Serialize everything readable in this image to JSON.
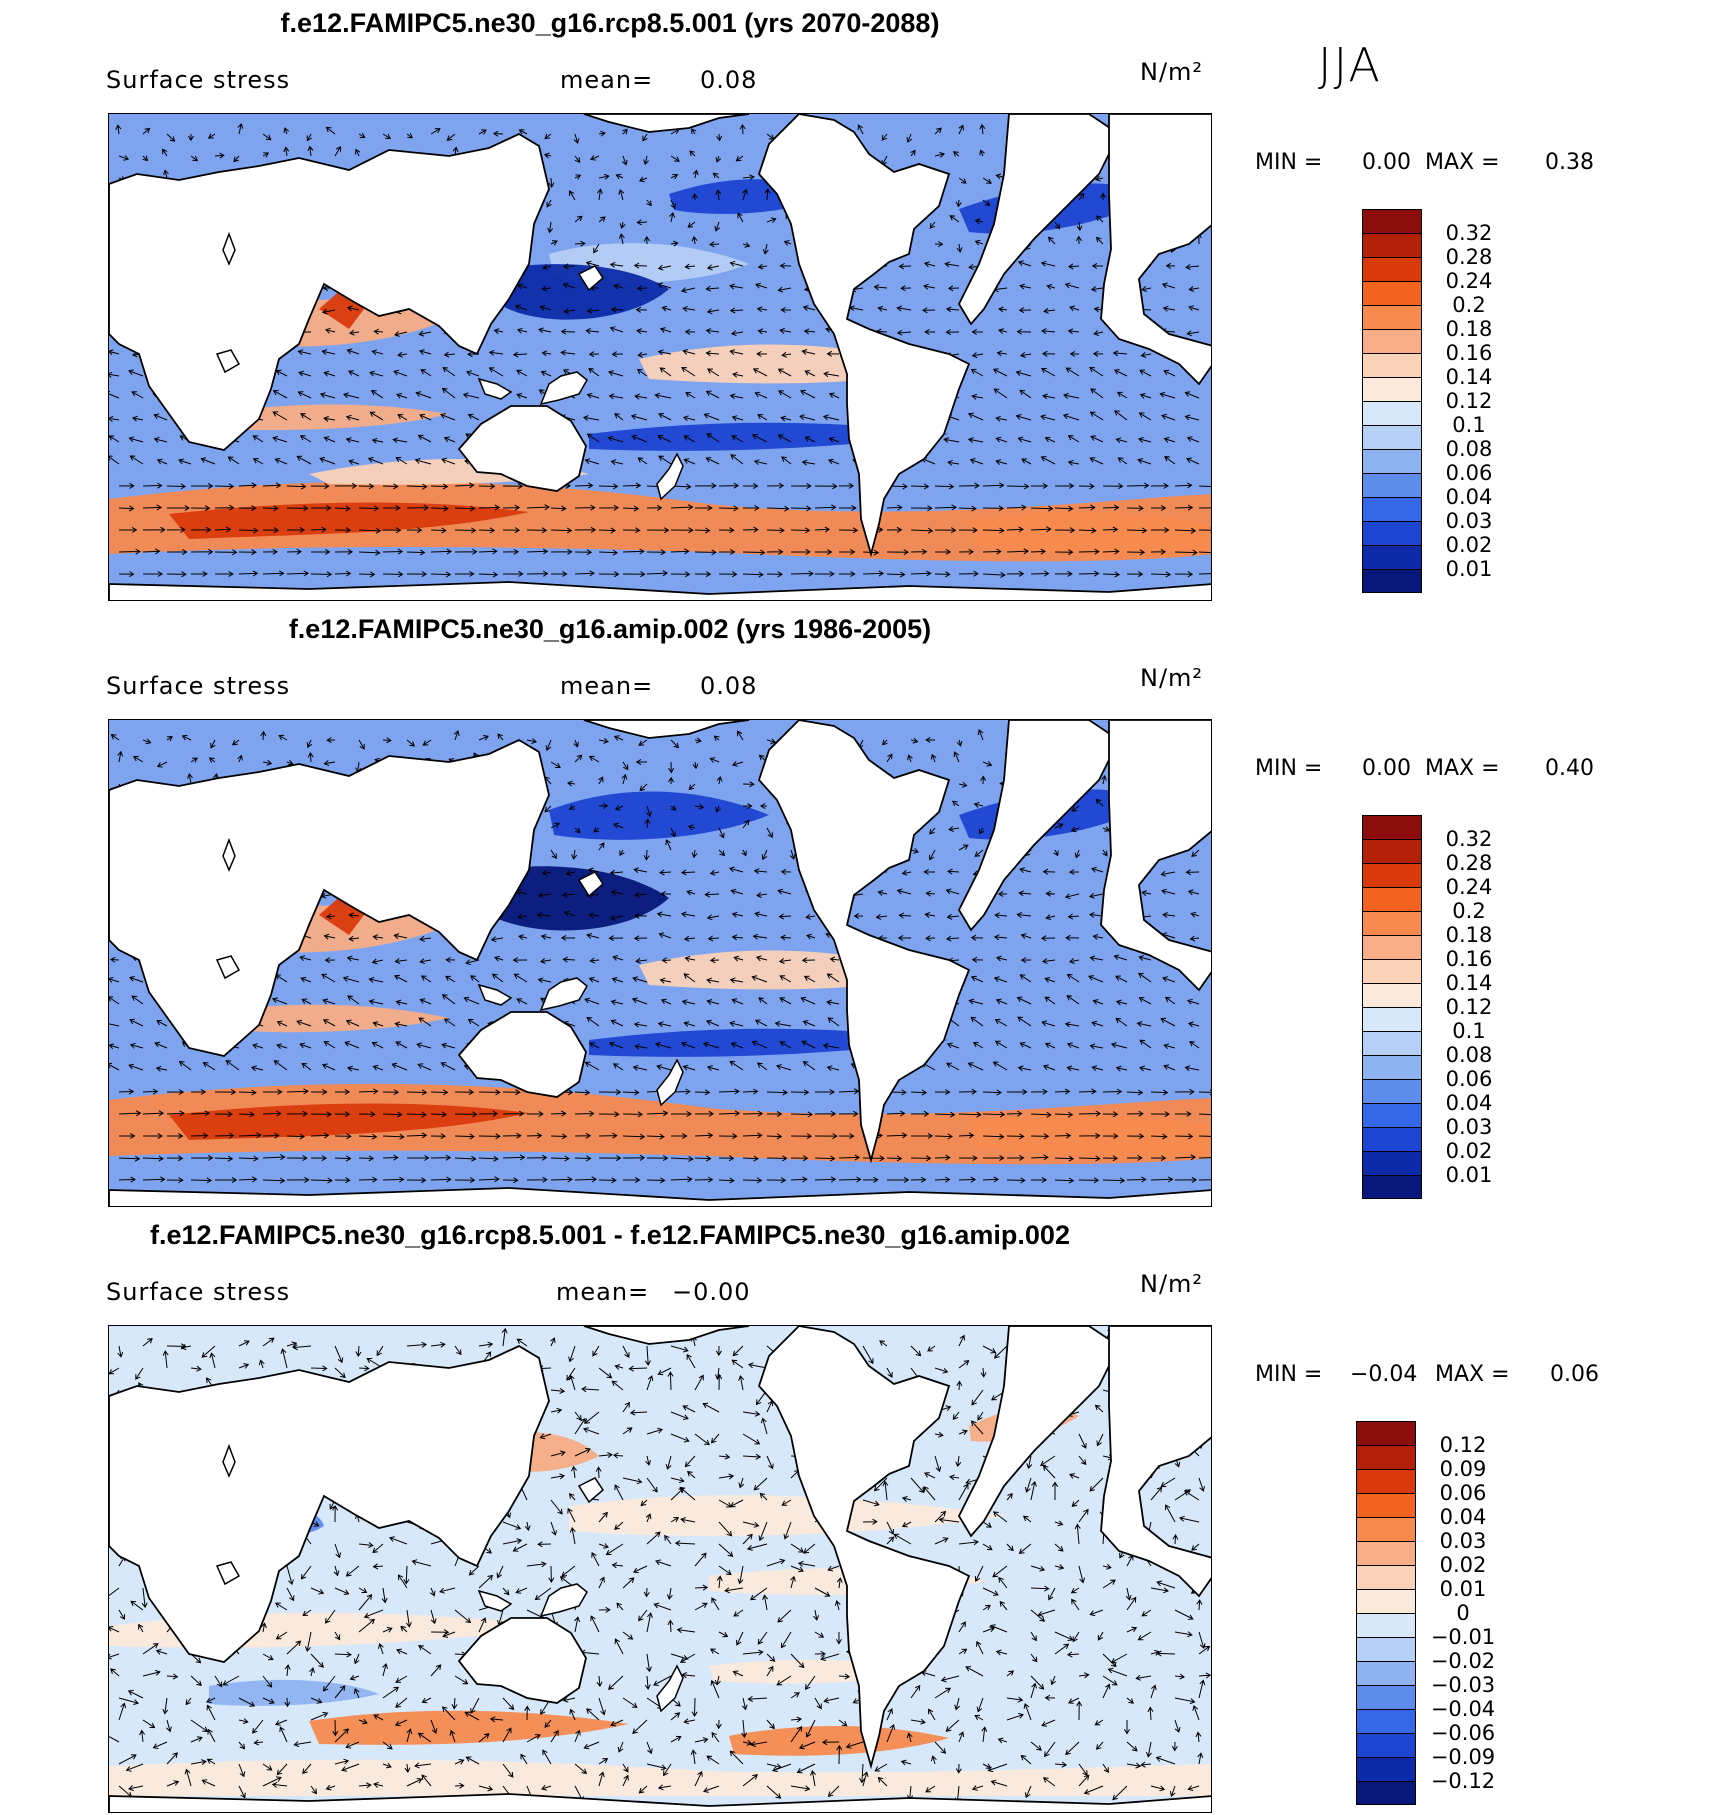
{
  "season": "JJA",
  "panels": [
    {
      "title": "f.e12.FAMIPC5.ne30_g16.rcp8.5.001 (yrs 2070-2088)",
      "variable": "Surface stress",
      "mean_label": "mean=",
      "mean_value": "0.08",
      "units": "N/m²",
      "min_label": "MIN =",
      "min_value": "0.00",
      "max_label": "MAX =",
      "max_value": "0.38",
      "colorbar": {
        "labels": [
          "0.32",
          "0.28",
          "0.24",
          "0.2",
          "0.18",
          "0.16",
          "0.14",
          "0.12",
          "0.1",
          "0.08",
          "0.06",
          "0.04",
          "0.03",
          "0.02",
          "0.01"
        ],
        "colors": [
          "#8b0d0d",
          "#b3200a",
          "#d93a0c",
          "#f2631f",
          "#f78a4f",
          "#f7ad85",
          "#fad2b8",
          "#fbeadb",
          "#d6e8fa",
          "#b5cff5",
          "#8fb2f0",
          "#5e8ced",
          "#3568e6",
          "#1c45d1",
          "#0d2ba8",
          "#07177a"
        ]
      },
      "map_style": "rcp"
    },
    {
      "title": "f.e12.FAMIPC5.ne30_g16.amip.002 (yrs 1986-2005)",
      "variable": "Surface stress",
      "mean_label": "mean=",
      "mean_value": "0.08",
      "units": "N/m²",
      "min_label": "MIN =",
      "min_value": "0.00",
      "max_label": "MAX =",
      "max_value": "0.40",
      "colorbar": {
        "labels": [
          "0.32",
          "0.28",
          "0.24",
          "0.2",
          "0.18",
          "0.16",
          "0.14",
          "0.12",
          "0.1",
          "0.08",
          "0.06",
          "0.04",
          "0.03",
          "0.02",
          "0.01"
        ],
        "colors": [
          "#8b0d0d",
          "#b3200a",
          "#d93a0c",
          "#f2631f",
          "#f78a4f",
          "#f7ad85",
          "#fad2b8",
          "#fbeadb",
          "#d6e8fa",
          "#b5cff5",
          "#8fb2f0",
          "#5e8ced",
          "#3568e6",
          "#1c45d1",
          "#0d2ba8",
          "#07177a"
        ]
      },
      "map_style": "amip"
    },
    {
      "title": "f.e12.FAMIPC5.ne30_g16.rcp8.5.001 - f.e12.FAMIPC5.ne30_g16.amip.002",
      "variable": "Surface stress",
      "mean_label": "mean=",
      "mean_value": "−0.00",
      "units": "N/m²",
      "min_label": "MIN =",
      "min_value": "−0.04",
      "max_label": "MAX =",
      "max_value": "0.06",
      "colorbar": {
        "labels": [
          "0.12",
          "0.09",
          "0.06",
          "0.04",
          "0.03",
          "0.02",
          "0.01",
          "0",
          "−0.01",
          "−0.02",
          "−0.03",
          "−0.04",
          "−0.06",
          "−0.09",
          "−0.12"
        ],
        "colors": [
          "#8b0d0d",
          "#b3200a",
          "#d93a0c",
          "#f2631f",
          "#f78a4f",
          "#f7ad85",
          "#fad2b8",
          "#fbeadb",
          "#d6e8fa",
          "#b5cff5",
          "#8fb2f0",
          "#5e8ced",
          "#3568e6",
          "#1c45d1",
          "#0d2ba8",
          "#07177a"
        ]
      },
      "map_style": "diff"
    }
  ]
}
